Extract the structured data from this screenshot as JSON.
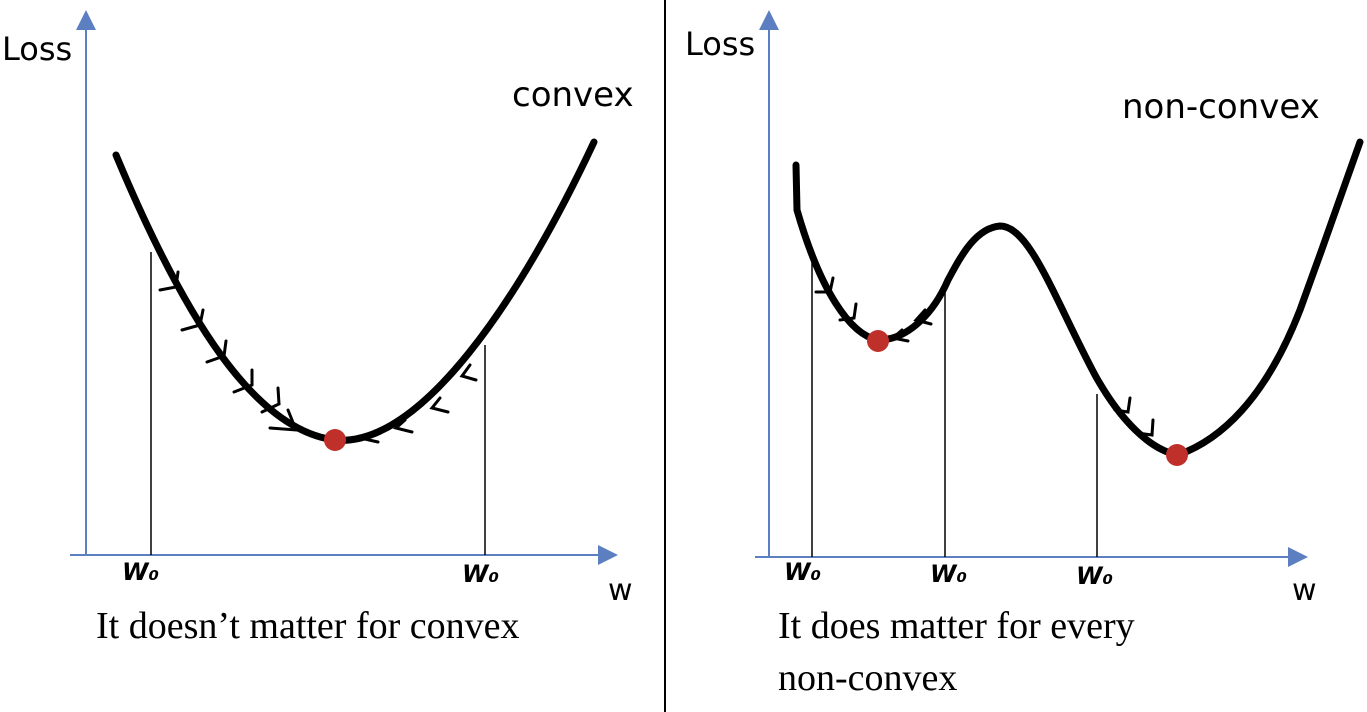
{
  "left_panel": {
    "y_axis_label": "Loss",
    "x_axis_label": "w",
    "curve_label": "convex",
    "start_label_1": "W₀",
    "start_label_2": "W₀",
    "caption": "It doesn’t matter for convex"
  },
  "right_panel": {
    "y_axis_label": "Loss",
    "x_axis_label": "w",
    "curve_label": "non-convex",
    "start_label_1": "W₀",
    "start_label_2": "W₀",
    "start_label_3": "W₀",
    "caption_line1": "It does matter for every",
    "caption_line2": "non-convex"
  },
  "colors": {
    "axis": "#5b7fc0",
    "curve": "#000000",
    "minimum_dot": "#c0302a",
    "divider": "#000000"
  }
}
